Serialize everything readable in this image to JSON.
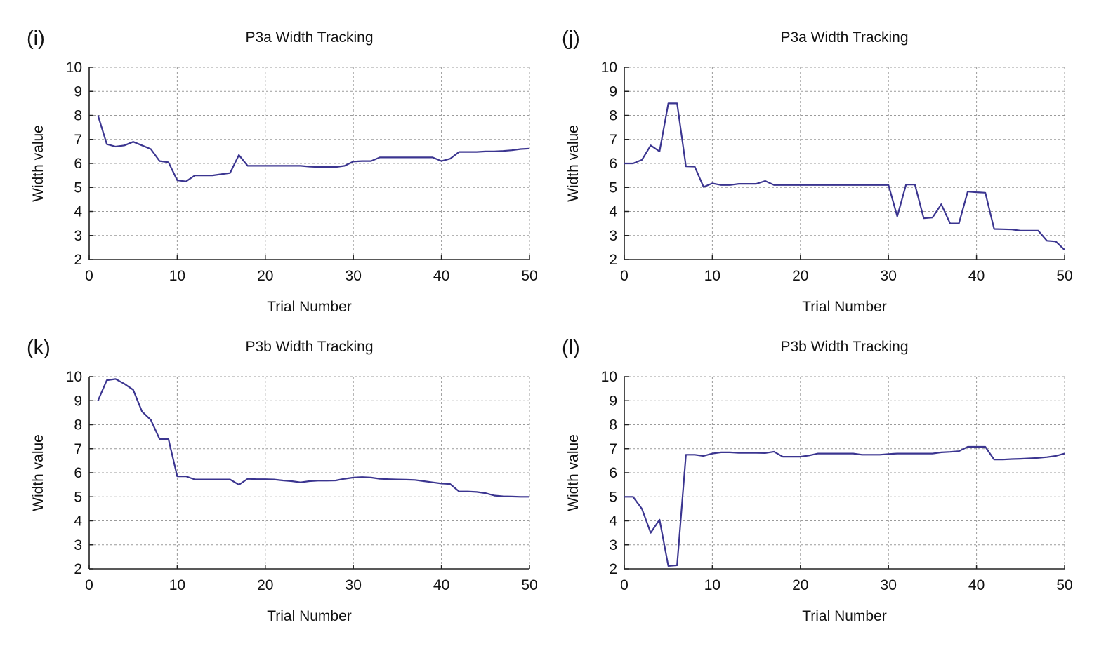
{
  "chart_data": [
    {
      "type": "line",
      "panel_label": "(i)",
      "title": "P3a Width Tracking",
      "xlabel": "Trial Number",
      "ylabel": "Width value",
      "xlim": [
        0,
        50
      ],
      "ylim": [
        2,
        10
      ],
      "xticks": [
        0,
        10,
        20,
        30,
        40,
        50
      ],
      "yticks": [
        2,
        3,
        4,
        5,
        6,
        7,
        8,
        9,
        10
      ],
      "grid": true,
      "color": "#3b3590",
      "x": [
        1,
        2,
        3,
        4,
        5,
        6,
        7,
        8,
        9,
        10,
        11,
        12,
        13,
        14,
        15,
        16,
        17,
        18,
        19,
        20,
        21,
        22,
        23,
        24,
        25,
        26,
        27,
        28,
        29,
        30,
        31,
        32,
        33,
        34,
        35,
        36,
        37,
        38,
        39,
        40,
        41,
        42,
        43,
        44,
        45,
        46,
        47,
        48,
        49,
        50
      ],
      "y": [
        8.0,
        6.8,
        6.7,
        6.75,
        6.9,
        6.75,
        6.6,
        6.1,
        6.05,
        5.3,
        5.25,
        5.5,
        5.5,
        5.5,
        5.55,
        5.6,
        6.35,
        5.9,
        5.9,
        5.9,
        5.9,
        5.9,
        5.9,
        5.9,
        5.87,
        5.85,
        5.85,
        5.85,
        5.9,
        6.08,
        6.1,
        6.1,
        6.25,
        6.25,
        6.25,
        6.25,
        6.25,
        6.25,
        6.25,
        6.1,
        6.2,
        6.48,
        6.48,
        6.48,
        6.5,
        6.5,
        6.52,
        6.55,
        6.6,
        6.62
      ]
    },
    {
      "type": "line",
      "panel_label": "(j)",
      "title": "P3a Width Tracking",
      "xlabel": "Trial Number",
      "ylabel": "Width value",
      "xlim": [
        0,
        50
      ],
      "ylim": [
        2,
        10
      ],
      "xticks": [
        0,
        10,
        20,
        30,
        40,
        50
      ],
      "yticks": [
        2,
        3,
        4,
        5,
        6,
        7,
        8,
        9,
        10
      ],
      "grid": true,
      "color": "#3b3590",
      "x": [
        0,
        1,
        2,
        3,
        4,
        5,
        6,
        7,
        8,
        9,
        10,
        11,
        12,
        13,
        14,
        15,
        16,
        17,
        18,
        19,
        20,
        21,
        22,
        23,
        24,
        25,
        26,
        27,
        28,
        29,
        30,
        31,
        32,
        33,
        34,
        35,
        36,
        37,
        38,
        39,
        40,
        41,
        42,
        43,
        44,
        45,
        46,
        47,
        48,
        49,
        50
      ],
      "y": [
        6.0,
        6.0,
        6.15,
        6.75,
        6.5,
        8.5,
        8.5,
        5.88,
        5.87,
        5.02,
        5.17,
        5.1,
        5.1,
        5.15,
        5.15,
        5.15,
        5.27,
        5.1,
        5.1,
        5.1,
        5.1,
        5.1,
        5.1,
        5.1,
        5.1,
        5.1,
        5.1,
        5.1,
        5.1,
        5.1,
        5.1,
        3.8,
        5.12,
        5.12,
        3.72,
        3.75,
        4.3,
        3.5,
        3.5,
        4.83,
        4.8,
        4.78,
        3.27,
        3.26,
        3.25,
        3.2,
        3.2,
        3.2,
        2.78,
        2.75,
        2.4
      ]
    },
    {
      "type": "line",
      "panel_label": "(k)",
      "title": "P3b Width Tracking",
      "xlabel": "Trial Number",
      "ylabel": "Width value",
      "xlim": [
        0,
        50
      ],
      "ylim": [
        2,
        10
      ],
      "xticks": [
        0,
        10,
        20,
        30,
        40,
        50
      ],
      "yticks": [
        2,
        3,
        4,
        5,
        6,
        7,
        8,
        9,
        10
      ],
      "grid": true,
      "color": "#3b3590",
      "x": [
        1,
        2,
        3,
        4,
        5,
        6,
        7,
        8,
        9,
        10,
        11,
        12,
        13,
        14,
        15,
        16,
        17,
        18,
        19,
        20,
        21,
        22,
        23,
        24,
        25,
        26,
        27,
        28,
        29,
        30,
        31,
        32,
        33,
        34,
        35,
        36,
        37,
        38,
        39,
        40,
        41,
        42,
        43,
        44,
        45,
        46,
        47,
        48,
        49,
        50
      ],
      "y": [
        9.0,
        9.85,
        9.9,
        9.7,
        9.45,
        8.55,
        8.2,
        7.4,
        7.4,
        5.85,
        5.85,
        5.72,
        5.72,
        5.72,
        5.72,
        5.72,
        5.5,
        5.75,
        5.73,
        5.73,
        5.72,
        5.68,
        5.65,
        5.6,
        5.65,
        5.67,
        5.67,
        5.68,
        5.75,
        5.8,
        5.82,
        5.8,
        5.75,
        5.73,
        5.72,
        5.71,
        5.7,
        5.65,
        5.6,
        5.55,
        5.53,
        5.22,
        5.22,
        5.2,
        5.15,
        5.05,
        5.02,
        5.01,
        5.0,
        5.0
      ]
    },
    {
      "type": "line",
      "panel_label": "(l)",
      "title": "P3b Width Tracking",
      "xlabel": "Trial Number",
      "ylabel": "Width value",
      "xlim": [
        0,
        50
      ],
      "ylim": [
        2,
        10
      ],
      "xticks": [
        0,
        10,
        20,
        30,
        40,
        50
      ],
      "yticks": [
        2,
        3,
        4,
        5,
        6,
        7,
        8,
        9,
        10
      ],
      "grid": true,
      "color": "#3b3590",
      "x": [
        0,
        1,
        2,
        3,
        4,
        5,
        6,
        7,
        8,
        9,
        10,
        11,
        12,
        13,
        14,
        15,
        16,
        17,
        18,
        19,
        20,
        21,
        22,
        23,
        24,
        25,
        26,
        27,
        28,
        29,
        30,
        31,
        32,
        33,
        34,
        35,
        36,
        37,
        38,
        39,
        40,
        41,
        42,
        43,
        44,
        45,
        46,
        47,
        48,
        49,
        50
      ],
      "y": [
        5.0,
        5.0,
        4.5,
        3.5,
        4.05,
        2.12,
        2.15,
        6.75,
        6.75,
        6.7,
        6.8,
        6.85,
        6.85,
        6.83,
        6.83,
        6.83,
        6.82,
        6.88,
        6.67,
        6.67,
        6.67,
        6.72,
        6.8,
        6.8,
        6.8,
        6.8,
        6.8,
        6.75,
        6.75,
        6.75,
        6.78,
        6.8,
        6.8,
        6.8,
        6.8,
        6.8,
        6.85,
        6.87,
        6.9,
        7.08,
        7.08,
        7.08,
        6.55,
        6.55,
        6.57,
        6.58,
        6.6,
        6.62,
        6.65,
        6.7,
        6.8
      ]
    }
  ]
}
